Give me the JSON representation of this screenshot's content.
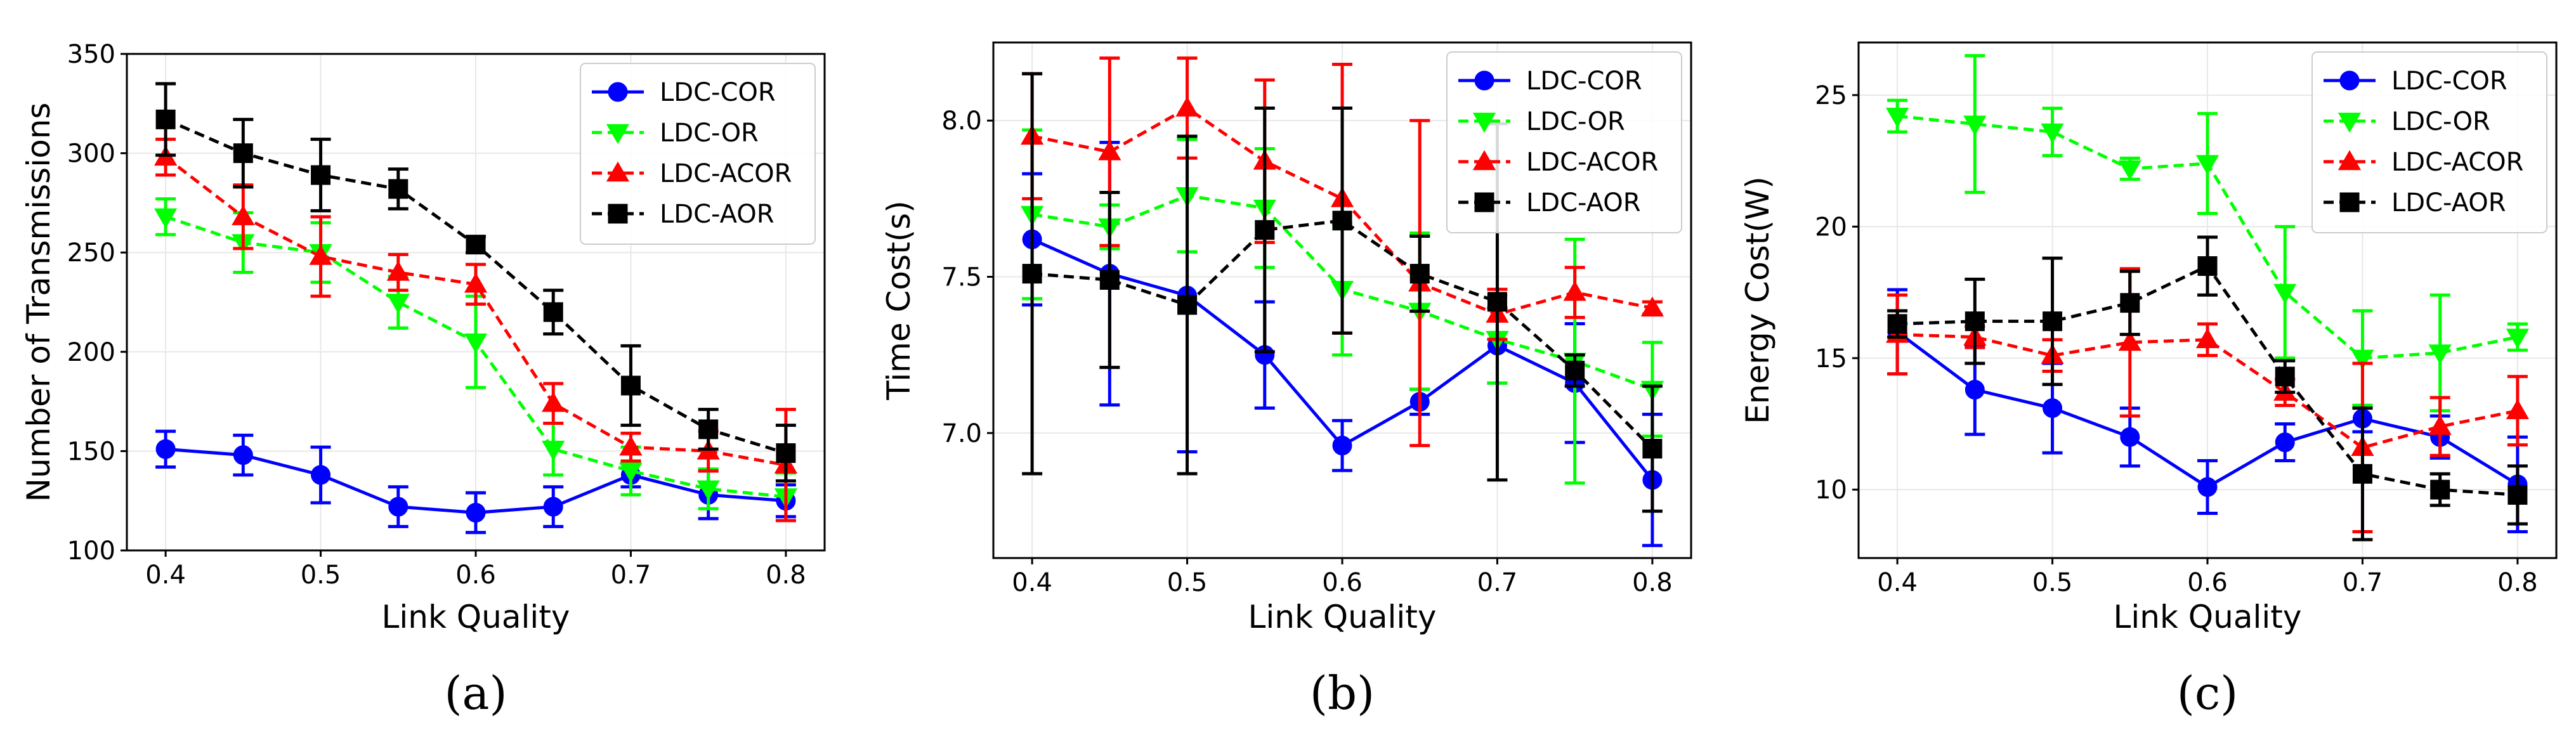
{
  "chart_data": [
    {
      "type": "line",
      "panel_label": "(a)",
      "xlabel": "Link Quality",
      "ylabel": "Number of Transmissions",
      "xlim": [
        0.375,
        0.825
      ],
      "ylim": [
        100,
        350
      ],
      "xticks": [
        0.4,
        0.5,
        0.6,
        0.7,
        0.8
      ],
      "xtick_labels": [
        "0.4",
        "0.5",
        "0.6",
        "0.7",
        "0.8"
      ],
      "yticks": [
        100,
        150,
        200,
        250,
        300,
        350
      ],
      "ytick_labels": [
        "100",
        "150",
        "200",
        "250",
        "300",
        "350"
      ],
      "grid": true,
      "legend_position": "upper-right",
      "x": [
        0.4,
        0.45,
        0.5,
        0.55,
        0.6,
        0.65,
        0.7,
        0.75,
        0.8
      ],
      "series": [
        {
          "name": "LDC-COR",
          "color": "#0000ff",
          "linestyle": "solid",
          "marker": "circle",
          "values": [
            151,
            148,
            138,
            122,
            119,
            122,
            138,
            128,
            125
          ],
          "errors": [
            9,
            10,
            14,
            10,
            10,
            10,
            6,
            12,
            8
          ]
        },
        {
          "name": "LDC-OR",
          "color": "#00ff00",
          "linestyle": "dashed",
          "marker": "triangle-down",
          "values": [
            268,
            255,
            250,
            225,
            205,
            151,
            140,
            131,
            127
          ],
          "errors": [
            9,
            15,
            15,
            13,
            23,
            13,
            12,
            10,
            12
          ]
        },
        {
          "name": "LDC-ACOR",
          "color": "#ff0000",
          "linestyle": "dashed",
          "marker": "triangle-up",
          "values": [
            298,
            268,
            248,
            240,
            234,
            174,
            152,
            150,
            143
          ],
          "errors": [
            9,
            16,
            20,
            9,
            10,
            10,
            7,
            10,
            28
          ]
        },
        {
          "name": "LDC-AOR",
          "color": "#000000",
          "linestyle": "dashed",
          "marker": "square",
          "values": [
            317,
            300,
            289,
            282,
            254,
            220,
            183,
            161,
            149
          ],
          "errors": [
            18,
            17,
            18,
            10,
            4,
            11,
            20,
            10,
            14
          ]
        }
      ]
    },
    {
      "type": "line",
      "panel_label": "(b)",
      "xlabel": "Link Quality",
      "ylabel": "Time Cost(s)",
      "xlim": [
        0.375,
        0.825
      ],
      "ylim": [
        6.6,
        8.25
      ],
      "xticks": [
        0.4,
        0.5,
        0.6,
        0.7,
        0.8
      ],
      "xtick_labels": [
        "0.4",
        "0.5",
        "0.6",
        "0.7",
        "0.8"
      ],
      "yticks": [
        7.0,
        7.5,
        8.0
      ],
      "ytick_labels": [
        "7.0",
        "7.5",
        "8.0"
      ],
      "grid": true,
      "legend_position": "upper-right",
      "x": [
        0.4,
        0.45,
        0.5,
        0.55,
        0.6,
        0.65,
        0.7,
        0.75,
        0.8
      ],
      "series": [
        {
          "name": "LDC-COR",
          "color": "#0000ff",
          "linestyle": "solid",
          "marker": "circle",
          "values": [
            7.62,
            7.51,
            7.44,
            7.25,
            6.96,
            7.1,
            7.28,
            7.16,
            6.85
          ],
          "errors": [
            0.21,
            0.42,
            0.5,
            0.17,
            0.08,
            0.04,
            0.12,
            0.19,
            0.21
          ]
        },
        {
          "name": "LDC-OR",
          "color": "#00ff00",
          "linestyle": "dashed",
          "marker": "triangle-down",
          "values": [
            7.7,
            7.66,
            7.76,
            7.72,
            7.46,
            7.39,
            7.3,
            7.23,
            7.14
          ],
          "errors": [
            0.27,
            0.07,
            0.18,
            0.19,
            0.21,
            0.25,
            0.14,
            0.39,
            0.15
          ]
        },
        {
          "name": "LDC-ACOR",
          "color": "#ff0000",
          "linestyle": "dashed",
          "marker": "triangle-up",
          "values": [
            7.95,
            7.9,
            8.04,
            7.87,
            7.75,
            7.48,
            7.38,
            7.45,
            7.4
          ],
          "errors": [
            0.2,
            0.3,
            0.16,
            0.26,
            0.43,
            0.52,
            0.08,
            0.08,
            0.02
          ]
        },
        {
          "name": "LDC-AOR",
          "color": "#000000",
          "linestyle": "dashed",
          "marker": "square",
          "values": [
            7.51,
            7.49,
            7.41,
            7.65,
            7.68,
            7.51,
            7.42,
            7.2,
            6.95
          ],
          "errors": [
            0.64,
            0.28,
            0.54,
            0.39,
            0.36,
            0.12,
            0.57,
            0.05,
            0.2
          ]
        }
      ]
    },
    {
      "type": "line",
      "panel_label": "(c)",
      "xlabel": "Link Quality",
      "ylabel": "Energy Cost(W)",
      "xlim": [
        0.375,
        0.825
      ],
      "ylim": [
        7.4,
        27
      ],
      "xticks": [
        0.4,
        0.5,
        0.6,
        0.7,
        0.8
      ],
      "xtick_labels": [
        "0.4",
        "0.5",
        "0.6",
        "0.7",
        "0.8"
      ],
      "yticks": [
        10,
        15,
        20,
        25
      ],
      "ytick_labels": [
        "10",
        "15",
        "20",
        "25"
      ],
      "grid": true,
      "legend_position": "upper-right",
      "x": [
        0.4,
        0.45,
        0.5,
        0.55,
        0.6,
        0.65,
        0.7,
        0.75,
        0.8
      ],
      "series": [
        {
          "name": "LDC-COR",
          "color": "#0000ff",
          "linestyle": "solid",
          "marker": "circle",
          "values": [
            16.0,
            13.8,
            13.1,
            12.0,
            10.1,
            11.8,
            12.7,
            12.0,
            10.2
          ],
          "errors": [
            1.6,
            1.7,
            1.7,
            1.1,
            1.0,
            0.7,
            0.5,
            0.8,
            1.8
          ]
        },
        {
          "name": "LDC-OR",
          "color": "#00ff00",
          "linestyle": "dashed",
          "marker": "triangle-down",
          "values": [
            24.2,
            23.9,
            23.6,
            22.2,
            22.4,
            17.5,
            15.0,
            15.2,
            15.8
          ],
          "errors": [
            0.6,
            2.6,
            0.9,
            0.4,
            1.9,
            2.5,
            1.8,
            2.2,
            0.5
          ]
        },
        {
          "name": "LDC-ACOR",
          "color": "#ff0000",
          "linestyle": "dashed",
          "marker": "triangle-up",
          "values": [
            15.9,
            15.8,
            15.1,
            15.6,
            15.7,
            13.7,
            11.6,
            12.4,
            13.0
          ],
          "errors": [
            1.5,
            0.4,
            0.6,
            2.8,
            0.6,
            0.5,
            3.2,
            1.1,
            1.3
          ]
        },
        {
          "name": "LDC-AOR",
          "color": "#000000",
          "linestyle": "dashed",
          "marker": "square",
          "values": [
            16.3,
            16.4,
            16.4,
            17.1,
            18.5,
            14.3,
            10.6,
            10.0,
            9.8
          ],
          "errors": [
            0.5,
            1.6,
            2.4,
            1.2,
            1.1,
            0.6,
            2.5,
            0.6,
            1.1
          ]
        }
      ]
    }
  ]
}
